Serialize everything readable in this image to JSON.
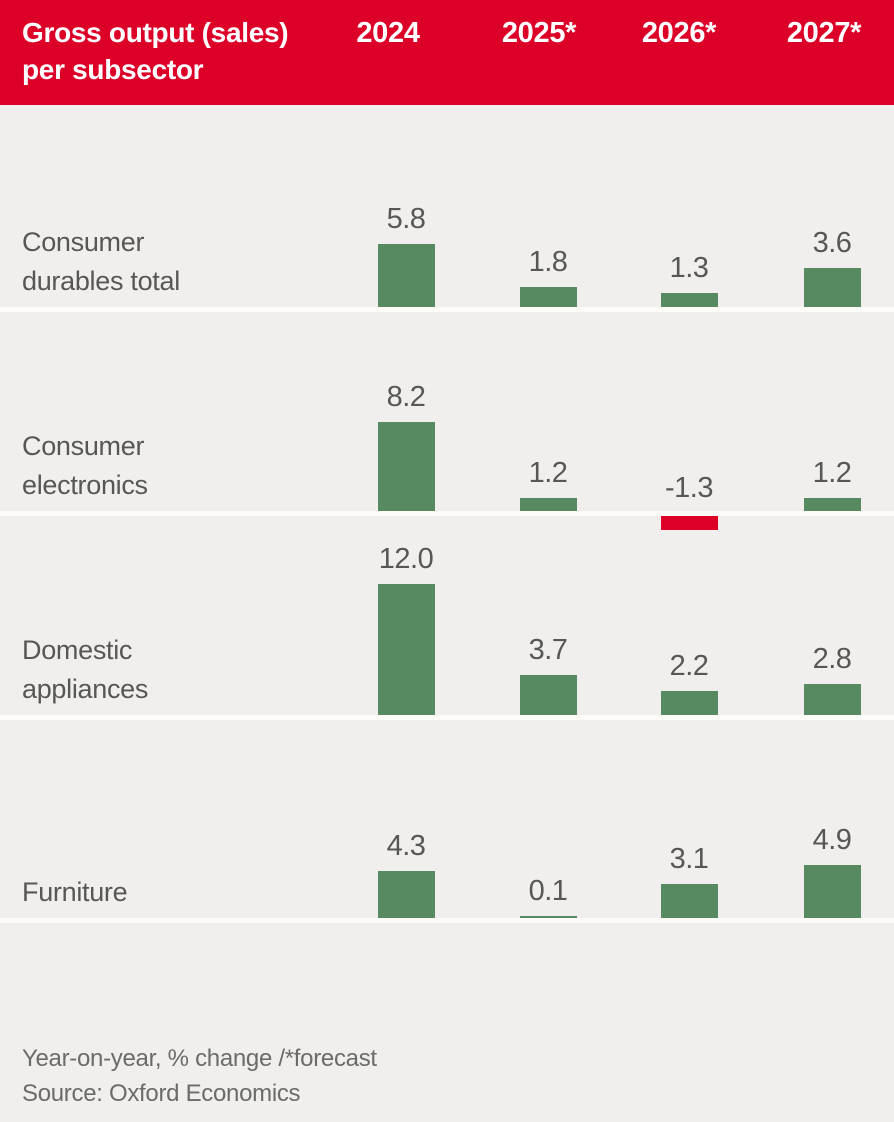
{
  "colors": {
    "header_bg": "#DC0028",
    "header_text": "#FFFFFF",
    "positive_bar": "#588A61",
    "negative_bar": "#DC0028",
    "background": "#F0EFED",
    "separator": "#FCFBF8",
    "value_text": "#575756",
    "footer_text": "#6B6B6A"
  },
  "header": {
    "title_line1": "Gross output (sales)",
    "title_line2": "per subsector"
  },
  "footer": {
    "note": "Year-on-year, % change /*forecast",
    "source": "Source: Oxford Economics"
  },
  "chart_data": {
    "type": "bar",
    "title": "Gross output (sales) per subsector",
    "ylabel": "Year-on-year, % change",
    "footnote": "*forecast",
    "source": "Oxford Economics",
    "legend_position": "none",
    "grid": false,
    "columns": [
      "2024",
      "2025*",
      "2026*",
      "2027*"
    ],
    "rows": [
      {
        "label": "Consumer durables total",
        "label_lines": [
          "Consumer",
          "durables total"
        ],
        "values": [
          5.8,
          1.8,
          1.3,
          3.6
        ]
      },
      {
        "label": "Consumer electronics",
        "label_lines": [
          "Consumer",
          "electronics"
        ],
        "values": [
          8.2,
          1.2,
          -1.3,
          1.2
        ]
      },
      {
        "label": "Domestic appliances",
        "label_lines": [
          "Domestic",
          "appliances"
        ],
        "values": [
          12.0,
          3.7,
          2.2,
          2.8
        ]
      },
      {
        "label": "Furniture",
        "label_lines": [
          "Furniture"
        ],
        "values": [
          4.3,
          0.1,
          3.1,
          4.9
        ]
      }
    ]
  }
}
